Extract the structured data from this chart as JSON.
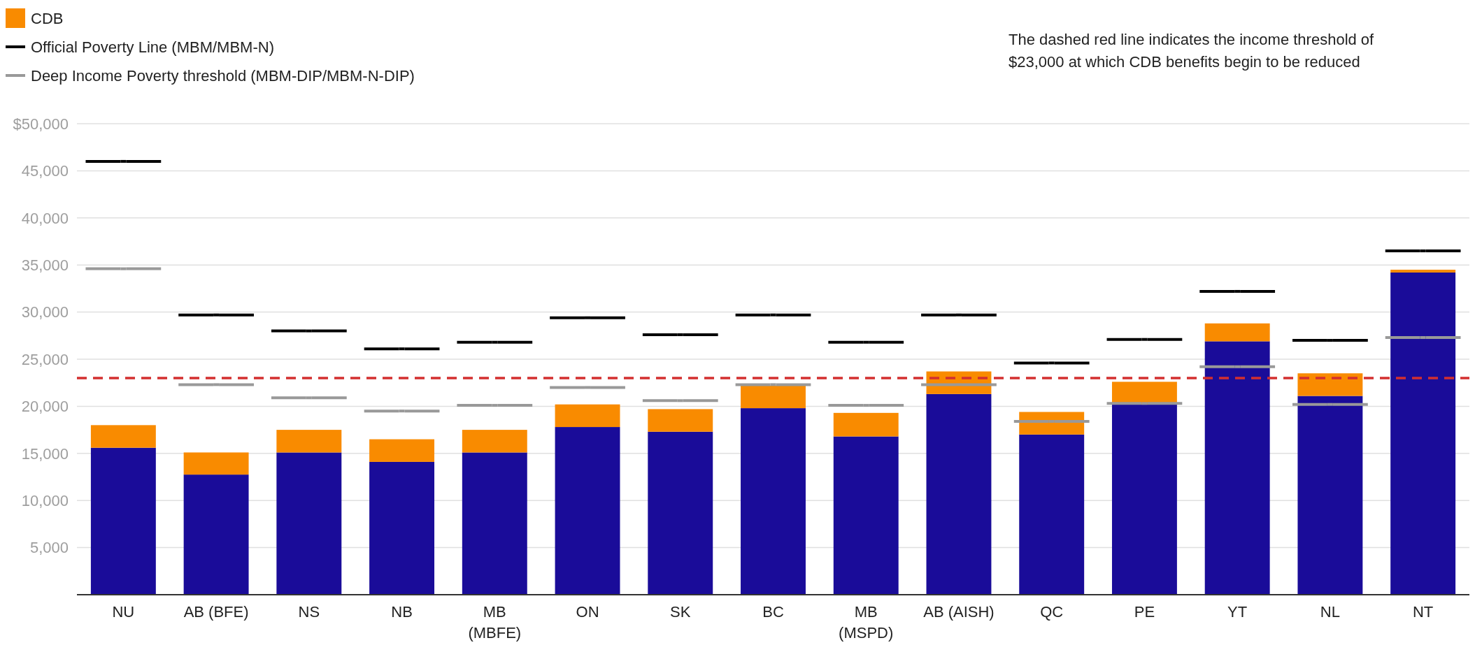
{
  "chart_data": {
    "type": "bar",
    "stacked": true,
    "categories": [
      "NU",
      "AB (BFE)",
      "NS",
      "NB",
      "MB\n(MBFE)",
      "ON",
      "SK",
      "BC",
      "MB\n(MSPD)",
      "AB (AISH)",
      "QC",
      "PE",
      "YT",
      "NL",
      "NT"
    ],
    "series": [
      {
        "color": "#1a0c99",
        "values": [
          15600,
          12750,
          15100,
          14100,
          15100,
          17800,
          17300,
          19800,
          16800,
          21300,
          17000,
          20200,
          26900,
          21100,
          34200
        ]
      },
      {
        "name": "CDB",
        "color": "#f98b00",
        "values": [
          2400,
          2350,
          2400,
          2400,
          2400,
          2400,
          2400,
          2400,
          2500,
          2400,
          2400,
          2400,
          1900,
          2400,
          300
        ]
      },
      {
        "name": "Official Poverty Line (MBM/MBM-N)",
        "type": "scatter",
        "color": "#000000",
        "values": [
          46000,
          29700,
          28000,
          26100,
          26800,
          29400,
          27600,
          29700,
          26800,
          29700,
          24600,
          27100,
          32200,
          27000,
          36500
        ]
      },
      {
        "name": "Deep Income Poverty threshold (MBM-DIP/MBM-N-DIP)",
        "type": "scatter",
        "color": "#999999",
        "values": [
          34600,
          22300,
          20900,
          19500,
          20100,
          22000,
          20600,
          22300,
          20100,
          22300,
          18400,
          20300,
          24200,
          20200,
          27300
        ]
      }
    ],
    "ylim": [
      0,
      50000
    ],
    "yticks": [
      {
        "value": 5000,
        "label": "5,000"
      },
      {
        "value": 10000,
        "label": "10,000"
      },
      {
        "value": 15000,
        "label": "15,000"
      },
      {
        "value": 20000,
        "label": "20,000"
      },
      {
        "value": 25000,
        "label": "25,000"
      },
      {
        "value": 30000,
        "label": "30,000"
      },
      {
        "value": 35000,
        "label": "35,000"
      },
      {
        "value": 40000,
        "label": "40,000"
      },
      {
        "value": 45000,
        "label": "45,000"
      },
      {
        "value": 50000,
        "label": "$50,000"
      }
    ],
    "grid": "y",
    "legend": "top left",
    "ref_lines": [
      {
        "axis": "y",
        "value": 23000,
        "color": "#d32f2f",
        "line_style": "dashed"
      }
    ],
    "annotations": [
      "The dashed red line indicates the income threshold of $23,000 at which CDB benefits begin to be reduced"
    ]
  }
}
